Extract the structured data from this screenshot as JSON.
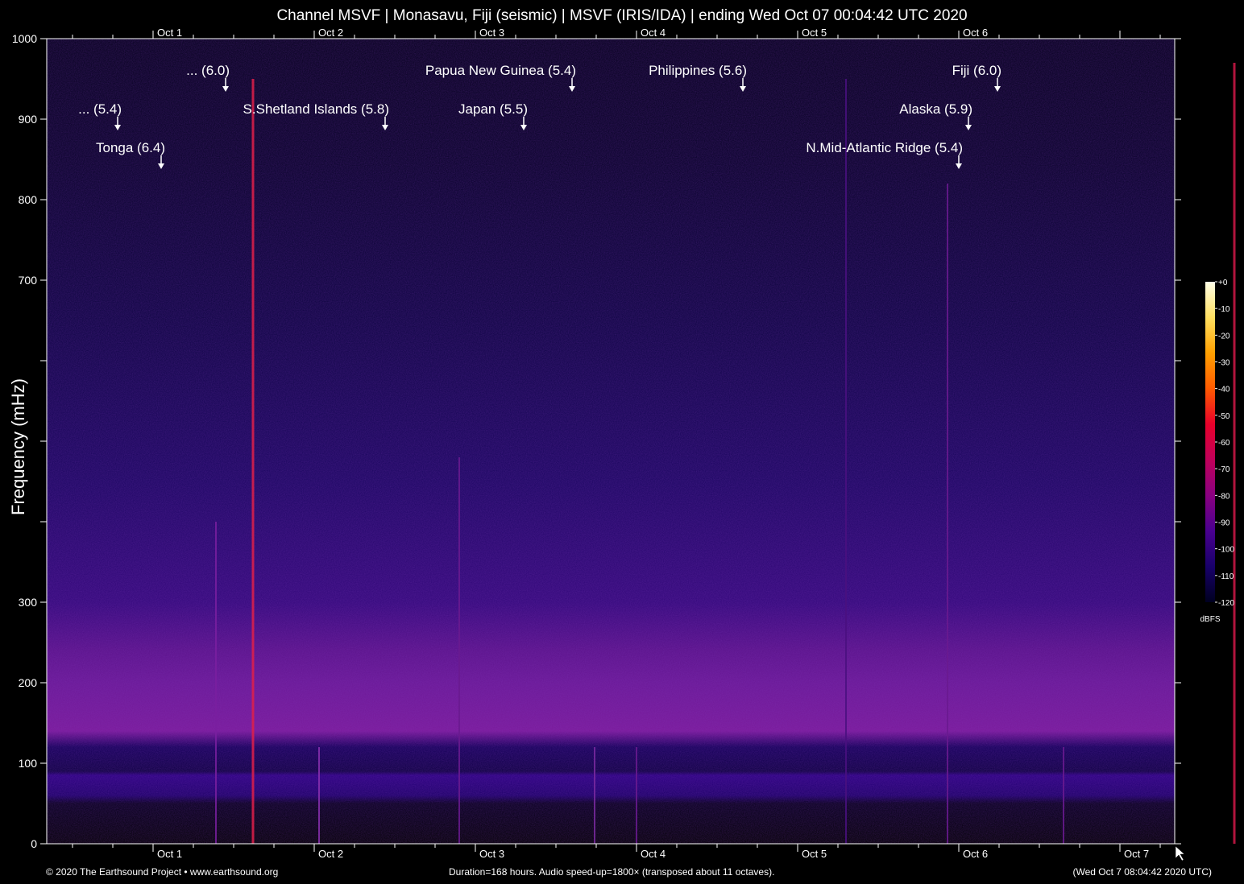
{
  "colors": {
    "background": "#000000",
    "axis": "#ffffff",
    "arrow": "#ffffff"
  },
  "header": {
    "title": "Channel MSVF | Monasavu, Fiji (seismic) | MSVF (IRIS/IDA) | ending Wed Oct 07 00:04:42 UTC 2020"
  },
  "footer": {
    "left": "© 2020 The Earthsound Project • www.earthsound.org",
    "middle": "Duration=168 hours. Audio speed-up=1800× (transposed about 11 octaves).",
    "right": "(Wed Oct  7 08:04:42 2020 UTC)"
  },
  "chart_data": {
    "type": "heatmap",
    "title": "Channel MSVF | Monasavu, Fiji (seismic) | MSVF (IRIS/IDA) | ending Wed Oct 07 00:04:42 UTC 2020",
    "ylabel": "Frequency (mHz)",
    "xlabel": "",
    "duration_hours": 168,
    "x_day_ticks": [
      "Oct 1",
      "Oct 2",
      "Oct 3",
      "Oct 4",
      "Oct 5",
      "Oct 6",
      "Oct 7"
    ],
    "x_top_day_ticks": [
      "Oct 1",
      "Oct 2",
      "Oct 3",
      "Oct 4",
      "Oct 5",
      "Oct 6"
    ],
    "y_ticks": [
      {
        "value": 0,
        "label": "0"
      },
      {
        "value": 100,
        "label": "100"
      },
      {
        "value": 200,
        "label": "200"
      },
      {
        "value": 300,
        "label": "300"
      },
      {
        "value": 400,
        "label": ""
      },
      {
        "value": 500,
        "label": ""
      },
      {
        "value": 600,
        "label": ""
      },
      {
        "value": 700,
        "label": "700"
      },
      {
        "value": 800,
        "label": "800"
      },
      {
        "value": 900,
        "label": "900"
      },
      {
        "value": 1000,
        "label": "1000"
      }
    ],
    "ylim": [
      0,
      1000
    ],
    "colorbar": {
      "unit": "dBFS",
      "range": [
        -120,
        0
      ],
      "ticks": [
        "+0",
        "-10",
        "-20",
        "-30",
        "-40",
        "-50",
        "-60",
        "-70",
        "-80",
        "-90",
        "-100",
        "-110",
        "-120"
      ],
      "stops": [
        "#ffffe8",
        "#ffe060",
        "#ffa000",
        "#ff5a00",
        "#e8002a",
        "#c0005a",
        "#8a0080",
        "#4a0090",
        "#18006a",
        "#000020"
      ]
    },
    "events": [
      {
        "label": "... (5.4)",
        "day_offset": 0.78
      },
      {
        "label": "Tonga (6.4)",
        "day_offset": 1.05
      },
      {
        "label": "... (6.0)",
        "day_offset": 1.45
      },
      {
        "label": "S.Shetland Islands (5.8)",
        "day_offset": 2.44
      },
      {
        "label": "Papua New Guinea (5.4)",
        "day_offset": 3.6
      },
      {
        "label": "Japan (5.5)",
        "day_offset": 3.3
      },
      {
        "label": "Philippines (5.6)",
        "day_offset": 4.66
      },
      {
        "label": "N.Mid-Atlantic Ridge (5.4)",
        "day_offset": 6.0
      },
      {
        "label": "Alaska (5.9)",
        "day_offset": 6.06
      },
      {
        "label": "Fiji (6.0)",
        "day_offset": 6.24
      }
    ],
    "grid": false
  }
}
